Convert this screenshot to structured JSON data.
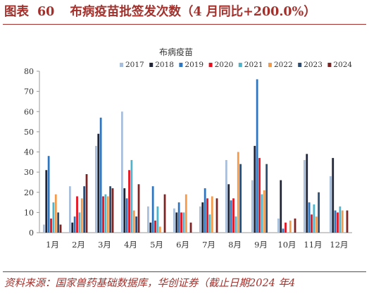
{
  "header": {
    "label": "图表",
    "number": "60",
    "title": "布病疫苗批签发次数（4 月同比+200.0%）"
  },
  "footer": {
    "source": "资料来源：国家兽药基础数据库，华创证券（截止日期2024 年4"
  },
  "chart_data": {
    "type": "bar",
    "title": "布病疫苗",
    "categories": [
      "1月",
      "2月",
      "3月",
      "4月",
      "5月",
      "6月",
      "7月",
      "8月",
      "9月",
      "10月",
      "11月",
      "12月"
    ],
    "ylim": [
      0,
      80
    ],
    "yticks": [
      0,
      10,
      20,
      30,
      40,
      50,
      60,
      70,
      80
    ],
    "grid": false,
    "legend_position": "top",
    "series": [
      {
        "name": "2017",
        "color": "#a8bfdc",
        "values": [
          4,
          23,
          43,
          60,
          13,
          12,
          13,
          36,
          26,
          7,
          36,
          28
        ]
      },
      {
        "name": "2018",
        "color": "#1f2537",
        "values": [
          31,
          5,
          49,
          22,
          5,
          10,
          15,
          24,
          43,
          26,
          39,
          37
        ]
      },
      {
        "name": "2019",
        "color": "#2e75c0",
        "values": [
          38,
          8,
          57,
          17,
          23,
          15,
          22,
          16,
          76,
          2,
          15,
          11
        ]
      },
      {
        "name": "2020",
        "color": "#e8101e",
        "values": [
          7,
          18,
          18,
          31,
          6,
          10,
          17,
          17,
          37,
          5,
          9,
          10
        ]
      },
      {
        "name": "2021",
        "color": "#4fb4cb",
        "values": [
          15,
          10,
          19,
          36,
          13,
          10,
          9,
          8,
          19,
          0,
          14,
          13
        ]
      },
      {
        "name": "2022",
        "color": "#f39b4b",
        "values": [
          19,
          17,
          18,
          11,
          3,
          19,
          18,
          40,
          21,
          6,
          8,
          11
        ]
      },
      {
        "name": "2023",
        "color": "#2c4d73",
        "values": [
          10,
          23,
          23,
          8,
          0,
          0,
          0,
          34,
          34,
          0,
          20,
          0
        ]
      },
      {
        "name": "2024",
        "color": "#7b2222",
        "values": [
          4,
          29,
          22,
          24,
          19,
          5,
          17,
          0,
          0,
          7,
          0,
          11
        ]
      }
    ]
  }
}
